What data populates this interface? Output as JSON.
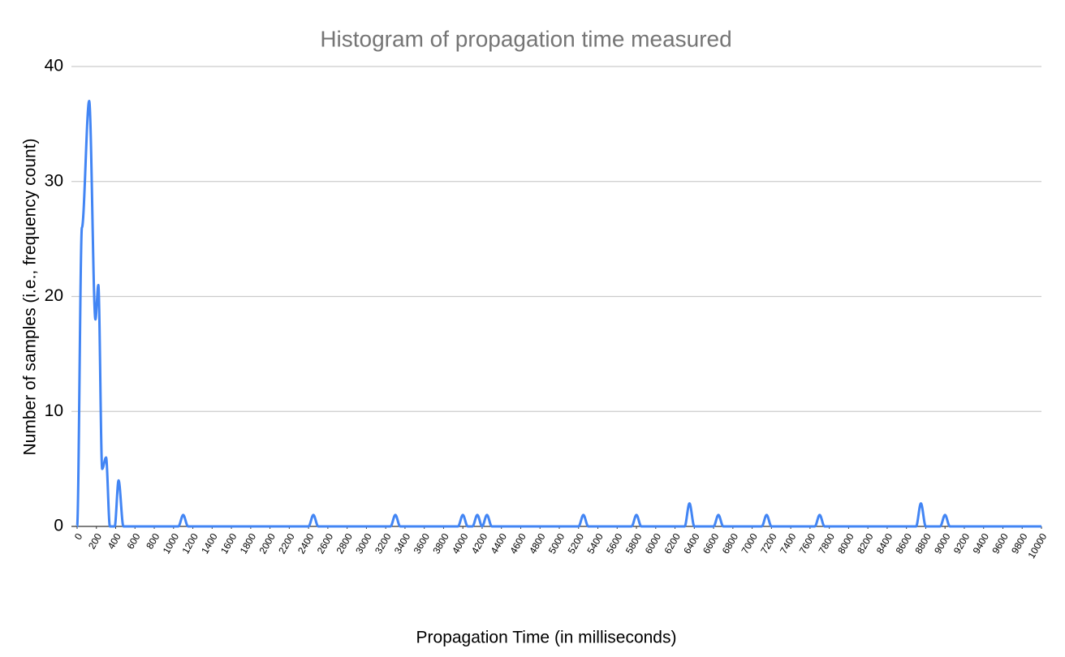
{
  "chart_data": {
    "type": "line",
    "title": "Histogram of propagation time measured",
    "xlabel": "Propagation Time (in milliseconds)",
    "ylabel": "Number of samples (i.e., frequency count)",
    "x": [
      0,
      50,
      125,
      190,
      220,
      260,
      300,
      340,
      390,
      430,
      480,
      1050,
      1100,
      1150,
      2400,
      2450,
      2500,
      3250,
      3300,
      3350,
      3950,
      4000,
      4050,
      4100,
      4150,
      4200,
      4250,
      4300,
      5200,
      5250,
      5300,
      5750,
      5800,
      5850,
      6300,
      6350,
      6400,
      6600,
      6650,
      6700,
      7100,
      7150,
      7200,
      7650,
      7700,
      7750,
      8700,
      8750,
      8800,
      8950,
      9000,
      9050,
      10000
    ],
    "values": [
      0,
      26,
      37,
      18,
      21,
      5,
      6,
      0,
      0,
      4,
      0,
      0,
      1,
      0,
      0,
      1,
      0,
      0,
      1,
      0,
      0,
      1,
      0,
      0,
      1,
      0,
      1,
      0,
      0,
      1,
      0,
      0,
      1,
      0,
      0,
      2,
      0,
      0,
      1,
      0,
      0,
      1,
      0,
      0,
      1,
      0,
      0,
      2,
      0,
      0,
      1,
      0,
      0
    ],
    "color": "#4285f4",
    "xlim": [
      0,
      10000
    ],
    "xticks": [
      0,
      200,
      400,
      600,
      800,
      1000,
      1200,
      1400,
      1600,
      1800,
      2000,
      2200,
      2400,
      2600,
      2800,
      3000,
      3200,
      3400,
      3600,
      3800,
      4000,
      4200,
      4400,
      4600,
      4800,
      5000,
      5200,
      5400,
      5600,
      5800,
      6000,
      6200,
      6400,
      6600,
      6800,
      7000,
      7200,
      7400,
      7600,
      7800,
      8000,
      8200,
      8400,
      8600,
      8800,
      9000,
      9200,
      9400,
      9600,
      9800,
      10000
    ],
    "ylim": [
      0,
      40
    ],
    "yticks": [
      0,
      10,
      20,
      30,
      40
    ],
    "grid": true
  }
}
